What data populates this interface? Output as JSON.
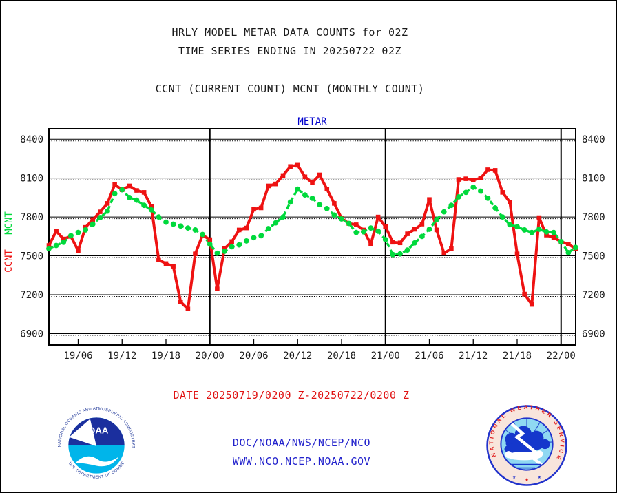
{
  "page": {
    "background": "#ffffff",
    "frame_color": "#000000"
  },
  "header": {
    "title_line1": "HRLY MODEL METAR DATA COUNTS for 02Z",
    "title_line2": "TIME SERIES ENDING IN 20250722 02Z",
    "subtitle": "CCNT (CURRENT COUNT) MCNT (MONTHLY COUNT)"
  },
  "footer": {
    "date_range": "DATE 20250719/0200 Z-20250722/0200 Z",
    "org": "DOC/NOAA/NWS/NCEP/NCO",
    "url": "WWW.NCO.NCEP.NOAA.GOV",
    "date_color": "#e01212",
    "link_color": "#2222cc"
  },
  "logos": {
    "noaa": {
      "ring_top": "NATIONAL OCEANIC AND ATMOSPHERIC ADMINISTRATION",
      "ring_bottom": "U.S. DEPARTMENT OF COMMERCE",
      "center_text": "NOAA",
      "dark_blue": "#1b2f9e",
      "cyan": "#00b5ea",
      "ring_text_color": "#223a9a"
    },
    "nws": {
      "ring_text": "NATIONAL WEATHER SERVICE",
      "ring_bg": "#f8e5dc",
      "ring_text_color": "#e02020",
      "border_color": "#2233cc",
      "sky_color": "#8fd8f2",
      "cloud_color": "#1537cc"
    }
  },
  "chart_data": {
    "type": "line",
    "title": "METAR",
    "title_color": "#0000cc",
    "x_start": "19/02 (20250719 0200Z)",
    "x_end": "22/02 (20250722 0200Z)",
    "x_step_hours": 1,
    "x_tick_labels": [
      "19/06",
      "19/12",
      "19/18",
      "20/00",
      "20/06",
      "20/12",
      "20/18",
      "21/00",
      "21/06",
      "21/12",
      "21/18",
      "22/00"
    ],
    "x_tick_hours": [
      4,
      10,
      16,
      22,
      28,
      34,
      40,
      46,
      52,
      58,
      64,
      70
    ],
    "day_line_hours": [
      22,
      46,
      70
    ],
    "y_ticks": [
      6900,
      7200,
      7500,
      7800,
      8100,
      8400
    ],
    "ylim": [
      6812,
      8481
    ],
    "grid": "horizontal solid line with dotted line beneath at each y tick; heavy vertical lines at day boundaries",
    "legend_position": "rotated labels on left axis",
    "left_axis_labels": [
      {
        "text": "MCNT",
        "color": "#00d93c"
      },
      {
        "text": "CCNT",
        "color": "#ee1212"
      }
    ],
    "series": [
      {
        "name": "CCNT",
        "color": "#ee1212",
        "line": "solid",
        "marker": "square",
        "values": [
          7580,
          7690,
          7630,
          7650,
          7540,
          7720,
          7780,
          7840,
          7905,
          8050,
          8010,
          8040,
          8005,
          7990,
          7880,
          7470,
          7440,
          7420,
          7145,
          7090,
          7515,
          7660,
          7625,
          7245,
          7555,
          7610,
          7700,
          7715,
          7860,
          7870,
          8040,
          8055,
          8120,
          8190,
          8200,
          8110,
          8065,
          8125,
          8015,
          7905,
          7790,
          7750,
          7740,
          7700,
          7590,
          7800,
          7725,
          7605,
          7600,
          7670,
          7705,
          7745,
          7935,
          7700,
          7520,
          7555,
          8090,
          8095,
          8085,
          8100,
          8165,
          8160,
          7990,
          7915,
          7515,
          7205,
          7125,
          7795,
          7660,
          7640,
          7610,
          7590,
          7555
        ]
      },
      {
        "name": "MCNT",
        "color": "#00d93c",
        "line": "dashed",
        "marker": "circle",
        "values": [
          7555,
          7580,
          7605,
          7655,
          7680,
          7700,
          7745,
          7795,
          7845,
          7980,
          8010,
          7950,
          7930,
          7890,
          7855,
          7800,
          7760,
          7745,
          7730,
          7715,
          7700,
          7665,
          7590,
          7520,
          7535,
          7570,
          7585,
          7615,
          7640,
          7655,
          7710,
          7755,
          7800,
          7915,
          8015,
          7970,
          7945,
          7895,
          7865,
          7815,
          7785,
          7750,
          7680,
          7685,
          7715,
          7690,
          7625,
          7510,
          7515,
          7545,
          7600,
          7650,
          7705,
          7780,
          7840,
          7890,
          7955,
          7990,
          8030,
          8000,
          7945,
          7870,
          7800,
          7740,
          7725,
          7700,
          7680,
          7705,
          7685,
          7680,
          7610,
          7525,
          7565
        ]
      }
    ]
  }
}
